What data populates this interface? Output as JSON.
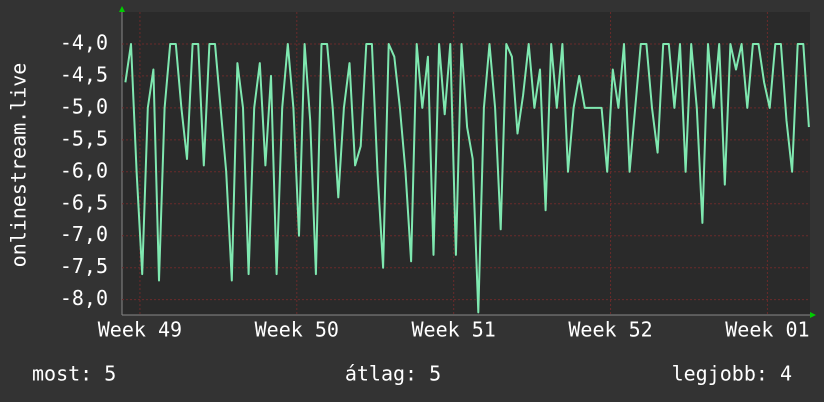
{
  "chart_data": {
    "type": "line",
    "ylabel": "onlinestream.live",
    "summary": [
      "most: 5",
      "átlag: 5",
      "legjobb: 4"
    ],
    "xlim": [
      0,
      30.7
    ],
    "xticks": [
      {
        "value": 0.8,
        "label": "Week 49"
      },
      {
        "value": 7.8,
        "label": "Week 50"
      },
      {
        "value": 14.8,
        "label": "Week 51"
      },
      {
        "value": 21.8,
        "label": "Week 52"
      },
      {
        "value": 28.8,
        "label": "Week 01"
      }
    ],
    "ylim": [
      -8.24,
      -3.5
    ],
    "yticks": [
      {
        "value": -4,
        "label": "-4,0"
      },
      {
        "value": -4.5,
        "label": "-4,5"
      },
      {
        "value": -5,
        "label": "-5,0"
      },
      {
        "value": -5.5,
        "label": "-5,5"
      },
      {
        "value": -6,
        "label": "-6,0"
      },
      {
        "value": -6.5,
        "label": "-6,5"
      },
      {
        "value": -7,
        "label": "-7,0"
      },
      {
        "value": -7.5,
        "label": "-7,5"
      },
      {
        "value": -8,
        "label": "-8,0"
      }
    ],
    "grid": true,
    "color": "#7fe8b0",
    "x": [
      0.15,
      0.4,
      0.65,
      0.9,
      1.15,
      1.4,
      1.65,
      1.9,
      2.15,
      2.4,
      2.65,
      2.9,
      3.15,
      3.4,
      3.65,
      3.9,
      4.15,
      4.4,
      4.65,
      4.9,
      5.15,
      5.4,
      5.65,
      5.9,
      6.15,
      6.4,
      6.65,
      6.9,
      7.15,
      7.4,
      7.65,
      7.9,
      8.15,
      8.4,
      8.65,
      8.9,
      9.15,
      9.4,
      9.65,
      9.9,
      10.15,
      10.4,
      10.65,
      10.9,
      11.15,
      11.4,
      11.65,
      11.9,
      12.15,
      12.4,
      12.65,
      12.9,
      13.15,
      13.4,
      13.65,
      13.9,
      14.15,
      14.4,
      14.65,
      14.9,
      15.15,
      15.4,
      15.65,
      15.9,
      16.15,
      16.4,
      16.65,
      16.9,
      17.15,
      17.4,
      17.65,
      17.9,
      18.15,
      18.4,
      18.65,
      18.9,
      19.15,
      19.4,
      19.65,
      19.9,
      20.15,
      20.4,
      20.65,
      20.9,
      21.15,
      21.4,
      21.65,
      21.9,
      22.15,
      22.4,
      22.65,
      22.9,
      23.15,
      23.4,
      23.65,
      23.9,
      24.15,
      24.4,
      24.65,
      24.9,
      25.15,
      25.4,
      25.65,
      25.9,
      26.15,
      26.4,
      26.65,
      26.9,
      27.15,
      27.4,
      27.65,
      27.9,
      28.15,
      28.4,
      28.65,
      28.9,
      29.15,
      29.4,
      29.65,
      29.9,
      30.15,
      30.4,
      30.65
    ],
    "values": [
      -4.6,
      -4.0,
      -6.0,
      -7.6,
      -5.0,
      -4.4,
      -7.7,
      -5.0,
      -4.0,
      -4.0,
      -5.0,
      -5.8,
      -4.0,
      -4.0,
      -5.9,
      -4.0,
      -4.0,
      -5.0,
      -6.0,
      -7.7,
      -4.3,
      -5.0,
      -7.6,
      -5.0,
      -4.3,
      -5.9,
      -4.5,
      -7.6,
      -5.0,
      -4.0,
      -5.0,
      -7.0,
      -4.0,
      -5.2,
      -7.6,
      -4.0,
      -4.0,
      -5.0,
      -6.4,
      -5.0,
      -4.3,
      -5.9,
      -5.6,
      -4.0,
      -4.0,
      -6.0,
      -7.5,
      -4.0,
      -4.2,
      -5.0,
      -6.0,
      -7.4,
      -4.0,
      -5.0,
      -4.2,
      -7.3,
      -4.0,
      -5.1,
      -4.0,
      -7.3,
      -4.0,
      -5.3,
      -5.8,
      -8.2,
      -5.0,
      -4.0,
      -5.0,
      -6.9,
      -4.0,
      -4.2,
      -5.4,
      -4.8,
      -4.0,
      -5.0,
      -4.4,
      -6.6,
      -4.0,
      -5.0,
      -4.0,
      -6.0,
      -5.0,
      -4.5,
      -5.0,
      -5.0,
      -5.0,
      -5.0,
      -6.0,
      -4.4,
      -5.0,
      -4.0,
      -6.0,
      -5.0,
      -4.0,
      -4.0,
      -5.0,
      -5.7,
      -4.0,
      -4.0,
      -5.0,
      -4.0,
      -6.0,
      -4.0,
      -5.0,
      -6.8,
      -4.0,
      -5.0,
      -4.0,
      -6.2,
      -4.0,
      -4.4,
      -4.0,
      -5.0,
      -4.0,
      -4.0,
      -4.6,
      -5.0,
      -4.0,
      -4.0,
      -5.2,
      -6.0,
      -4.0,
      -4.0,
      -5.3
    ]
  }
}
